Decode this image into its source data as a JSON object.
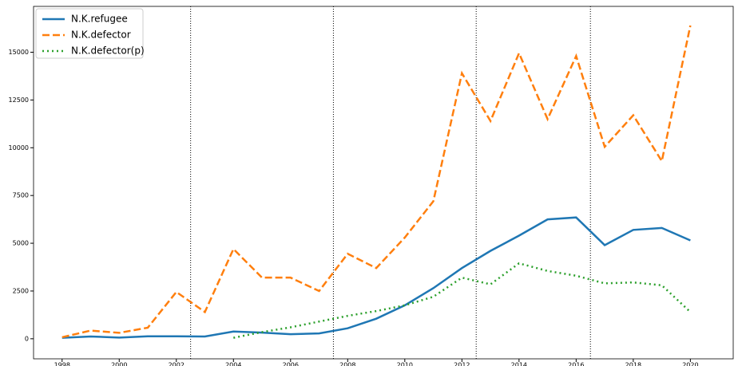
{
  "chart_data": {
    "type": "line",
    "x": [
      1998,
      1999,
      2000,
      2001,
      2002,
      2003,
      2004,
      2005,
      2006,
      2007,
      2008,
      2009,
      2010,
      2011,
      2012,
      2013,
      2014,
      2015,
      2016,
      2017,
      2018,
      2019,
      2020
    ],
    "series": [
      {
        "name": "N.K.refugee",
        "color": "#1f77b4",
        "dash": "solid",
        "values": [
          50,
          120,
          60,
          130,
          130,
          120,
          380,
          320,
          240,
          280,
          550,
          1050,
          1750,
          2650,
          3700,
          4600,
          5400,
          6250,
          6350,
          4900,
          5700,
          5800,
          5150
        ]
      },
      {
        "name": "N.K.defector",
        "color": "#ff7f0e",
        "dash": "dashed",
        "values": [
          80,
          430,
          310,
          580,
          2450,
          1400,
          4700,
          3200,
          3200,
          2500,
          4450,
          3700,
          5300,
          7200,
          13900,
          11400,
          14950,
          11500,
          14800,
          10050,
          11700,
          9300,
          16400
        ]
      },
      {
        "name": "N.K.defector(p)",
        "color": "#2ca02c",
        "dash": "dotted",
        "values": [
          null,
          null,
          null,
          null,
          null,
          null,
          50,
          350,
          600,
          900,
          1200,
          1450,
          1750,
          2200,
          3200,
          2850,
          3950,
          3550,
          3300,
          2900,
          2950,
          2800,
          1400
        ]
      }
    ],
    "xlim": [
      1997,
      2021.5
    ],
    "ylim": [
      -1050,
      17400
    ],
    "xticks": [
      1998,
      2000,
      2002,
      2004,
      2006,
      2008,
      2010,
      2012,
      2014,
      2016,
      2018,
      2020
    ],
    "yticks": [
      0,
      2500,
      5000,
      7500,
      10000,
      12500,
      15000
    ],
    "vlines": [
      2002.5,
      2007.5,
      2012.5,
      2016.5
    ],
    "legend": "upper left"
  }
}
